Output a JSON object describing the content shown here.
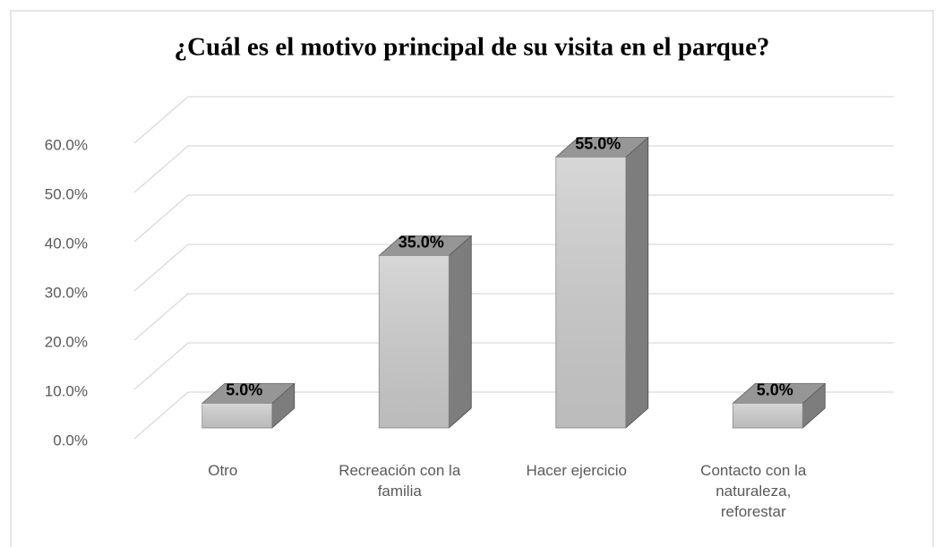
{
  "chart_data": {
    "type": "bar3d",
    "title": "¿Cuál es el motivo principal de su visita en el parque?",
    "categories": [
      "Otro",
      "Recreación con la familia",
      "Hacer ejercicio",
      "Contacto con la naturaleza, reforestar"
    ],
    "values": [
      5,
      35,
      55,
      5
    ],
    "value_labels": [
      "5.0%",
      "35.0%",
      "55.0%",
      "5.0%"
    ],
    "color": "#d0d0d0",
    "ylim": [
      0,
      60
    ],
    "yticks": [
      {
        "value": 0,
        "label": "0.0%"
      },
      {
        "value": 10,
        "label": "10.0%"
      },
      {
        "value": 20,
        "label": "20.0%"
      },
      {
        "value": 30,
        "label": "30.0%"
      },
      {
        "value": 40,
        "label": "40.0%"
      },
      {
        "value": 50,
        "label": "50.0%"
      },
      {
        "value": 60,
        "label": "60.0%"
      }
    ],
    "grid": true
  }
}
